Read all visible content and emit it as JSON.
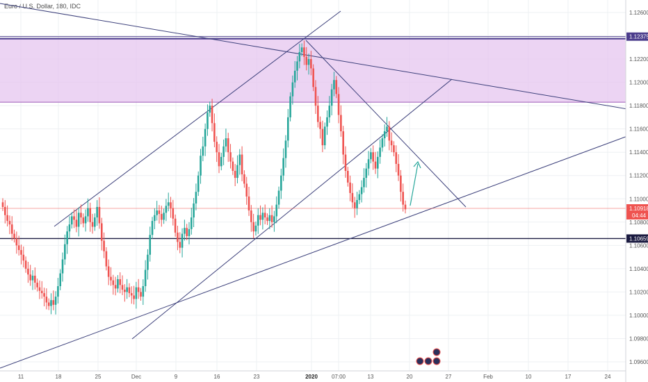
{
  "chart_data": {
    "type": "candlestick",
    "title": "Euro / U.S. Dollar, 180, IDC",
    "y_axis": {
      "min": 1.095,
      "max": 1.127,
      "tick_labels": [
        "1.12600",
        "1.12400",
        "1.12200",
        "1.12000",
        "1.11800",
        "1.11600",
        "1.11400",
        "1.11200",
        "1.11000",
        "1.10800",
        "1.10600",
        "1.10400",
        "1.10200",
        "1.10000",
        "1.09800",
        "1.09600"
      ]
    },
    "x_axis": {
      "tick_labels": [
        "11",
        "18",
        "25",
        "Dec",
        "9",
        "16",
        "23",
        "2020",
        "07:00",
        "13",
        "20",
        "27",
        "Feb",
        "10",
        "17",
        "24"
      ]
    },
    "current_price": {
      "label": "1.10918",
      "value": 1.10918,
      "countdown": "04:44"
    },
    "horizontal_levels": [
      {
        "label": "1.12375",
        "value": 1.12375
      },
      {
        "label": "1.10659",
        "value": 1.10659
      }
    ],
    "zone": {
      "top": 1.12375,
      "bottom": 1.1183,
      "color": "#e6c6ef"
    },
    "colors": {
      "up": "#26a69a",
      "down": "#ef5350",
      "line": "#3b3f7a",
      "price_line": "#ef5350"
    },
    "candle_closes": [
      1.1093,
      1.1086,
      1.1081,
      1.1078,
      1.107,
      1.1066,
      1.106,
      1.1056,
      1.1052,
      1.1047,
      1.104,
      1.1035,
      1.103,
      1.1034,
      1.1028,
      1.1024,
      1.1021,
      1.1019,
      1.1016,
      1.1011,
      1.1008,
      1.1013,
      1.1009,
      1.1016,
      1.1025,
      1.1036,
      1.1048,
      1.1061,
      1.1072,
      1.1078,
      1.1085,
      1.1082,
      1.1076,
      1.1088,
      1.1084,
      1.1079,
      1.1085,
      1.1092,
      1.108,
      1.1076,
      1.1084,
      1.1093,
      1.1079,
      1.1064,
      1.1055,
      1.1042,
      1.1033,
      1.103,
      1.1026,
      1.1023,
      1.1031,
      1.1026,
      1.1022,
      1.102,
      1.1024,
      1.1019,
      1.1017,
      1.1014,
      1.1024,
      1.102,
      1.1016,
      1.1025,
      1.1039,
      1.1052,
      1.1069,
      1.1081,
      1.1086,
      1.109,
      1.1087,
      1.1082,
      1.1088,
      1.1094,
      1.1097,
      1.1092,
      1.1083,
      1.1071,
      1.1063,
      1.1058,
      1.107,
      1.1075,
      1.1068,
      1.1074,
      1.1084,
      1.1096,
      1.1106,
      1.112,
      1.1137,
      1.1145,
      1.116,
      1.1174,
      1.118,
      1.1165,
      1.1149,
      1.114,
      1.1128,
      1.1136,
      1.1145,
      1.1152,
      1.114,
      1.1132,
      1.1124,
      1.1118,
      1.1129,
      1.1138,
      1.1121,
      1.1113,
      1.1102,
      1.109,
      1.108,
      1.1072,
      1.1077,
      1.1086,
      1.1082,
      1.1088,
      1.1084,
      1.1081,
      1.1086,
      1.108,
      1.1085,
      1.1095,
      1.1107,
      1.112,
      1.1135,
      1.115,
      1.117,
      1.1188,
      1.12,
      1.121,
      1.1218,
      1.1226,
      1.123,
      1.1222,
      1.1215,
      1.122,
      1.1212,
      1.1196,
      1.118,
      1.1166,
      1.116,
      1.1146,
      1.1162,
      1.117,
      1.118,
      1.1194,
      1.1202,
      1.119,
      1.1172,
      1.1158,
      1.1138,
      1.1124,
      1.1114,
      1.1105,
      1.1097,
      1.1092,
      1.1099,
      1.1104,
      1.111,
      1.1118,
      1.1126,
      1.1134,
      1.114,
      1.1132,
      1.1126,
      1.1136,
      1.1144,
      1.1152,
      1.1158,
      1.1162,
      1.115,
      1.1146,
      1.114,
      1.113,
      1.112,
      1.1106,
      1.1095,
      1.1091
    ]
  }
}
